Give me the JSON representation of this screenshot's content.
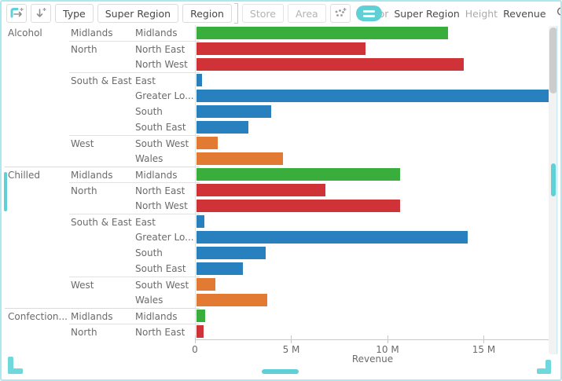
{
  "window": {
    "accent_color": "#5fd0d6",
    "border_color": "#aee7ed"
  },
  "toolbar": {
    "icons": {
      "add_column_breakdown": "pivot-arrow-plus-icon",
      "add_row_breakdown": "down-arrow-plus-icon",
      "add_variable": "dots-plus-icon",
      "visuals_toggle": "hamburger-icon",
      "search": "magnifier-icon",
      "export_excel": "excel-icon",
      "table_view": "table-icon",
      "expand": "diagonal-arrows-icon"
    },
    "breakdown_buttons": [
      {
        "label": "Type",
        "enabled": true
      },
      {
        "label": "Super Region",
        "enabled": true
      },
      {
        "label": "Region",
        "enabled": true
      },
      {
        "label": "Store",
        "enabled": false
      },
      {
        "label": "Area",
        "enabled": false
      }
    ],
    "drop_marker_after": "Region",
    "visual_settings": [
      {
        "label": "Color",
        "value": "Super Region"
      },
      {
        "label": "Height",
        "value": "Revenue"
      }
    ]
  },
  "chart_data": {
    "type": "bar",
    "orientation": "horizontal",
    "xlabel": "Revenue",
    "xlim": [
      0,
      18450000
    ],
    "x_ticks": [
      {
        "value": 0,
        "label": "0"
      },
      {
        "value": 5000000,
        "label": "5 M"
      },
      {
        "value": 10000000,
        "label": "10 M"
      },
      {
        "value": 15000000,
        "label": "15 M"
      }
    ],
    "color_by": "Super Region",
    "palette": {
      "Midlands": "#3aae3c",
      "North": "#cf3337",
      "South & East": "#2980bf",
      "West": "#e27a33"
    },
    "rows": [
      {
        "type": "Alcohol",
        "super_region": "Midlands",
        "region": "Midlands",
        "revenue": 13100000
      },
      {
        "type": "Alcohol",
        "super_region": "North",
        "region": "North East",
        "revenue": 8800000
      },
      {
        "type": "Alcohol",
        "super_region": "North",
        "region": "North West",
        "revenue": 13900000
      },
      {
        "type": "Alcohol",
        "super_region": "South & East",
        "region": "East",
        "revenue": 300000
      },
      {
        "type": "Alcohol",
        "super_region": "South & East",
        "region": "Greater Lo...",
        "revenue": 18400000
      },
      {
        "type": "Alcohol",
        "super_region": "South & East",
        "region": "South",
        "revenue": 3900000
      },
      {
        "type": "Alcohol",
        "super_region": "South & East",
        "region": "South East",
        "revenue": 2700000
      },
      {
        "type": "Alcohol",
        "super_region": "West",
        "region": "South West",
        "revenue": 1100000
      },
      {
        "type": "Alcohol",
        "super_region": "West",
        "region": "Wales",
        "revenue": 4500000
      },
      {
        "type": "Chilled",
        "super_region": "Midlands",
        "region": "Midlands",
        "revenue": 10600000
      },
      {
        "type": "Chilled",
        "super_region": "North",
        "region": "North East",
        "revenue": 6700000
      },
      {
        "type": "Chilled",
        "super_region": "North",
        "region": "North West",
        "revenue": 10600000
      },
      {
        "type": "Chilled",
        "super_region": "South & East",
        "region": "East",
        "revenue": 400000
      },
      {
        "type": "Chilled",
        "super_region": "South & East",
        "region": "Greater Lo...",
        "revenue": 14100000
      },
      {
        "type": "Chilled",
        "super_region": "South & East",
        "region": "South",
        "revenue": 3600000
      },
      {
        "type": "Chilled",
        "super_region": "South & East",
        "region": "South East",
        "revenue": 2400000
      },
      {
        "type": "Chilled",
        "super_region": "West",
        "region": "South West",
        "revenue": 1000000
      },
      {
        "type": "Chilled",
        "super_region": "West",
        "region": "Wales",
        "revenue": 3700000
      },
      {
        "type": "Confection...",
        "super_region": "Midlands",
        "region": "Midlands",
        "revenue": 450000
      },
      {
        "type": "Confection...",
        "super_region": "North",
        "region": "North East",
        "revenue": 350000
      }
    ]
  }
}
